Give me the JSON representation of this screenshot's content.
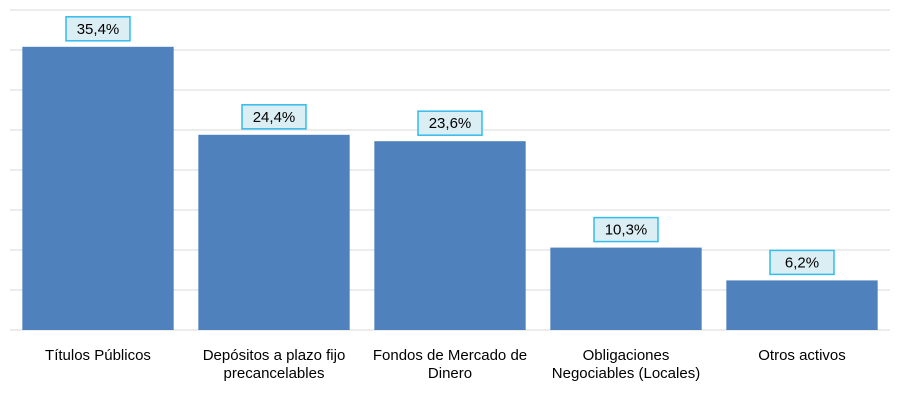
{
  "chart_data": {
    "type": "bar",
    "categories": [
      "Títulos Públicos",
      "Depósitos a plazo fijo precancelables",
      "Fondos de Mercado de Dinero",
      "Obligaciones Negociables (Locales)",
      "Otros activos"
    ],
    "values": [
      35.4,
      24.4,
      23.6,
      10.3,
      6.2
    ],
    "value_labels": [
      "35,4%",
      "24,4%",
      "23,6%",
      "10,3%",
      "6,2%"
    ],
    "color": "#4f81bd",
    "ylim": [
      0,
      40
    ],
    "yticks": [
      0,
      5,
      10,
      15,
      20,
      25,
      30,
      35,
      40
    ],
    "grid": true
  }
}
